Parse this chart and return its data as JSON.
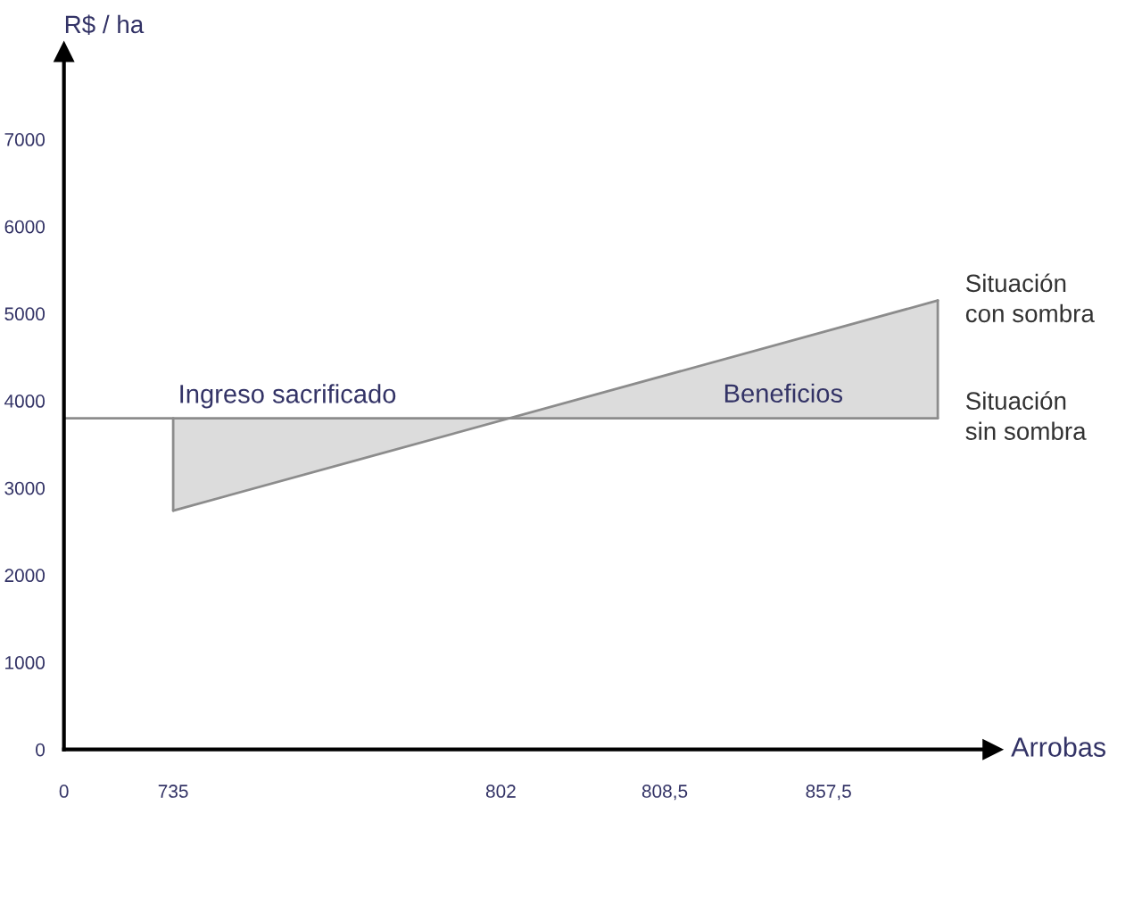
{
  "chart_data": {
    "type": "line",
    "xlabel": "Arrobas",
    "ylabel": "R$ / ha",
    "categories": [
      "0",
      null,
      "735",
      null,
      null,
      null,
      null,
      null,
      "802",
      null,
      null,
      "808,5",
      null,
      null,
      "857,5",
      null,
      null
    ],
    "ylim": [
      0,
      8000
    ],
    "yticks": [
      0,
      1000,
      2000,
      3000,
      4000,
      5000,
      6000,
      7000
    ],
    "series": [
      {
        "name": "Situación sin sombra",
        "color": "#8c8c8c",
        "values": [
          3800,
          null,
          null,
          null,
          null,
          null,
          null,
          null,
          null,
          null,
          null,
          null,
          null,
          null,
          null,
          null,
          3800
        ]
      },
      {
        "name": "Situación con sombra",
        "color": "#8c8c8c",
        "values": [
          null,
          null,
          2740,
          null,
          null,
          null,
          null,
          null,
          null,
          null,
          null,
          null,
          null,
          null,
          null,
          null,
          5150
        ]
      }
    ],
    "annotations": [
      {
        "text": "Ingreso sacrificado",
        "x": "735",
        "y": 3800
      },
      "Beneficios"
    ],
    "grid": false,
    "legend": false
  }
}
